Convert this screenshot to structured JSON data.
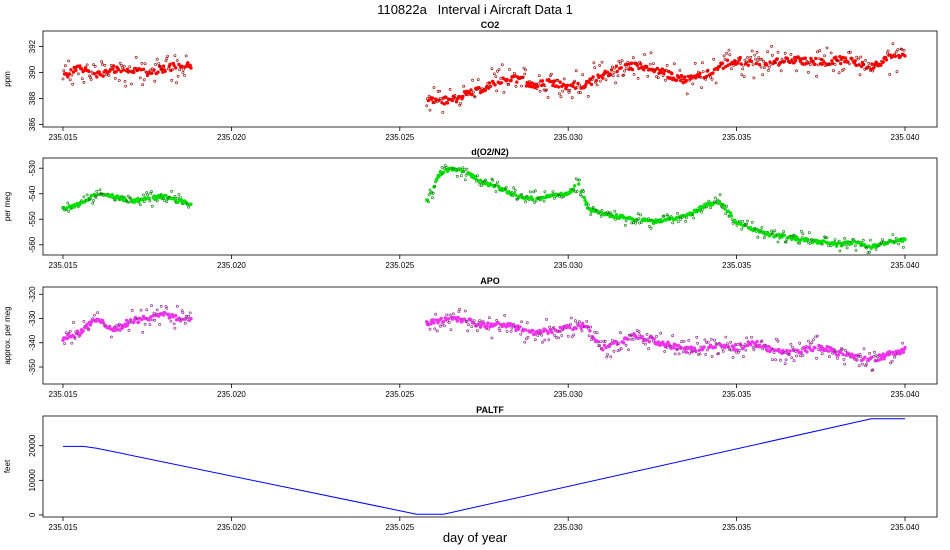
{
  "title": "110822a   Interval i Aircraft Data 1",
  "xlabel": "day of year",
  "chart_data": [
    {
      "type": "scatter",
      "title": "CO2",
      "ylabel": "ppm",
      "color": "#ff0000",
      "xlim": [
        235.015,
        235.04
      ],
      "ylim": [
        385.8,
        393.2
      ],
      "xticks": [
        "235.015",
        "235.020",
        "235.025",
        "235.030",
        "235.035",
        "235.040"
      ],
      "yticks": [
        "386",
        "388",
        "390",
        "392"
      ],
      "segments": [
        {
          "x_start": 235.015,
          "x_end": 235.0188
        },
        {
          "x_start": 235.0258,
          "x_end": 235.04
        }
      ],
      "trend_x": [
        235.015,
        235.0155,
        235.016,
        235.0165,
        235.017,
        235.0175,
        235.018,
        235.0185,
        235.0188,
        235.0258,
        235.0265,
        235.027,
        235.0275,
        235.028,
        235.0285,
        235.029,
        235.0295,
        235.03,
        235.0305,
        235.031,
        235.0315,
        235.032,
        235.0325,
        235.033,
        235.0335,
        235.034,
        235.0345,
        235.035,
        235.0355,
        235.036,
        235.0365,
        235.037,
        235.0375,
        235.038,
        235.0385,
        235.039,
        235.0395,
        235.04
      ],
      "trend_y": [
        389.6,
        390.4,
        389.8,
        390.3,
        390.1,
        390.0,
        390.3,
        390.6,
        390.6,
        388.0,
        387.8,
        388.4,
        388.7,
        389.4,
        389.5,
        389.0,
        389.3,
        388.9,
        389.1,
        389.7,
        390.4,
        390.5,
        390.3,
        389.8,
        389.4,
        389.8,
        390.5,
        390.9,
        390.8,
        390.7,
        391.0,
        390.9,
        390.8,
        391.0,
        390.8,
        390.5,
        391.1,
        391.4
      ],
      "noise": 1.1
    },
    {
      "type": "scatter",
      "title": "d(O2/N2)",
      "ylabel": "per meg",
      "color": "#00e000",
      "xlim": [
        235.015,
        235.04
      ],
      "ylim": [
        -564,
        -526
      ],
      "xticks": [
        "235.015",
        "235.020",
        "235.025",
        "235.030",
        "235.035",
        "235.040"
      ],
      "yticks": [
        "-530",
        "-540",
        "-550",
        "-560"
      ],
      "segments": [
        {
          "x_start": 235.015,
          "x_end": 235.0188
        },
        {
          "x_start": 235.0258,
          "x_end": 235.04
        }
      ],
      "trend_x": [
        235.015,
        235.0155,
        235.016,
        235.0165,
        235.017,
        235.0175,
        235.018,
        235.0185,
        235.0188,
        235.0258,
        235.0262,
        235.0266,
        235.027,
        235.0275,
        235.028,
        235.0285,
        235.029,
        235.0295,
        235.03,
        235.0303,
        235.0306,
        235.031,
        235.0315,
        235.032,
        235.0325,
        235.033,
        235.0335,
        235.034,
        235.0345,
        235.035,
        235.0355,
        235.036,
        235.0365,
        235.037,
        235.0375,
        235.038,
        235.0385,
        235.039,
        235.0395,
        235.04
      ],
      "trend_y": [
        -546.0,
        -544.0,
        -540.0,
        -541.0,
        -543.0,
        -542.0,
        -541.0,
        -543.0,
        -544.0,
        -543.0,
        -532.0,
        -530.0,
        -532.0,
        -536.0,
        -538.0,
        -541.0,
        -542.0,
        -541.0,
        -540.0,
        -536.0,
        -546.0,
        -548.0,
        -549.0,
        -550.0,
        -551.0,
        -550.0,
        -549.0,
        -545.0,
        -543.0,
        -551.0,
        -554.0,
        -556.0,
        -557.0,
        -558.0,
        -559.0,
        -560.0,
        -559.0,
        -561.0,
        -559.0,
        -558.0
      ],
      "noise": 2.6
    },
    {
      "type": "scatter",
      "title": "APO",
      "ylabel": "approx. per meg",
      "color": "#ee33ee",
      "xlim": [
        235.015,
        235.04
      ],
      "ylim": [
        -357,
        -317
      ],
      "xticks": [
        "235.015",
        "235.020",
        "235.025",
        "235.030",
        "235.035",
        "235.040"
      ],
      "yticks": [
        "-320",
        "-330",
        "-340",
        "-350"
      ],
      "segments": [
        {
          "x_start": 235.015,
          "x_end": 235.0188
        },
        {
          "x_start": 235.0258,
          "x_end": 235.04
        }
      ],
      "trend_x": [
        235.015,
        235.0155,
        235.016,
        235.0165,
        235.017,
        235.0175,
        235.018,
        235.0185,
        235.0188,
        235.0258,
        235.0265,
        235.027,
        235.0275,
        235.028,
        235.0285,
        235.029,
        235.0295,
        235.03,
        235.0305,
        235.031,
        235.0315,
        235.032,
        235.0325,
        235.033,
        235.0335,
        235.034,
        235.0345,
        235.035,
        235.0355,
        235.036,
        235.0365,
        235.037,
        235.0375,
        235.038,
        235.0385,
        235.039,
        235.0395,
        235.04
      ],
      "trend_y": [
        -338.0,
        -336.0,
        -330.0,
        -335.0,
        -331.0,
        -330.0,
        -328.0,
        -330.0,
        -330.0,
        -332.0,
        -330.0,
        -331.0,
        -333.0,
        -332.0,
        -334.0,
        -336.0,
        -335.0,
        -334.0,
        -333.0,
        -342.0,
        -340.0,
        -337.0,
        -339.0,
        -341.0,
        -343.0,
        -342.0,
        -341.0,
        -342.0,
        -340.0,
        -343.0,
        -344.0,
        -343.0,
        -342.0,
        -344.0,
        -346.0,
        -347.0,
        -345.0,
        -343.0
      ],
      "noise": 4.5
    },
    {
      "type": "line",
      "title": "PALTF",
      "ylabel": "feet",
      "color": "#0000ff",
      "xlim": [
        235.015,
        235.04
      ],
      "ylim": [
        -600,
        28600
      ],
      "xticks": [
        "235.015",
        "235.020",
        "235.025",
        "235.030",
        "235.035",
        "235.040"
      ],
      "yticks": [
        "0",
        "10000",
        "20000"
      ],
      "x": [
        235.015,
        235.0156,
        235.016,
        235.0255,
        235.0263,
        235.039,
        235.04
      ],
      "y": [
        19800,
        19800,
        19300,
        200,
        200,
        27800,
        27800
      ]
    }
  ]
}
